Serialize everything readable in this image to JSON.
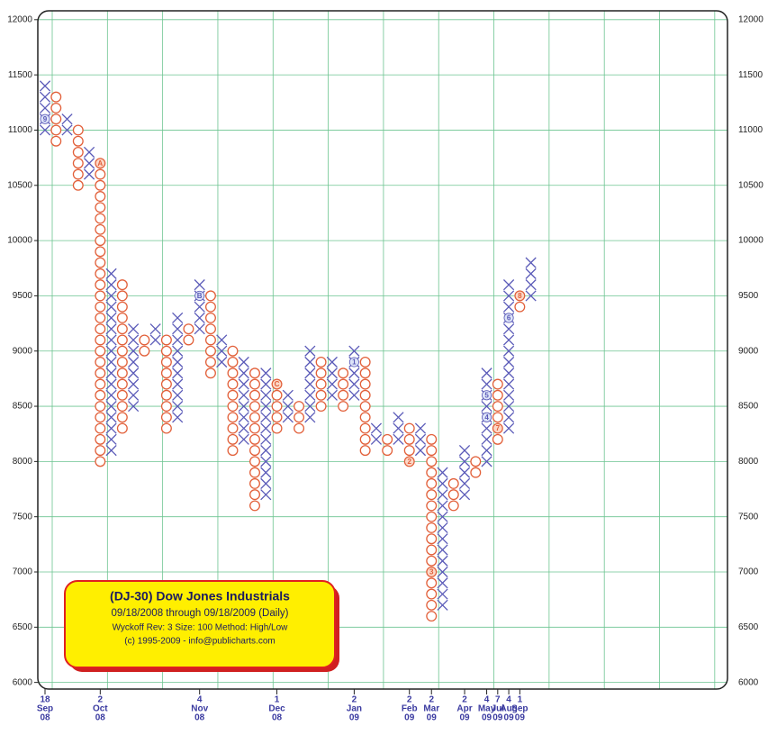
{
  "chart_data": {
    "type": "point-figure",
    "legend_box": {
      "title": "(DJ-30) Dow Jones Industrials",
      "subtitle": "09/18/2008 through 09/18/2009 (Daily)",
      "settings": "Wyckoff Rev: 3 Size: 100 Method: High/Low",
      "copyright": "(c) 1995-2009 - info@publicharts.com"
    },
    "box_size": 100,
    "ylim": [
      5940,
      12080
    ],
    "yticks": [
      6000,
      6500,
      7000,
      7500,
      8000,
      8500,
      9000,
      9500,
      10000,
      10500,
      11000,
      11500,
      12000
    ],
    "grid": true,
    "x_color": "#5a5ab8",
    "o_color": "#e2603a",
    "columns": [
      {
        "kind": "X",
        "from": 11000,
        "to": 11400,
        "date": {
          "day": "18",
          "month": "Sep",
          "year": "08"
        },
        "markers": [
          {
            "label": "9",
            "value": 11100
          }
        ]
      },
      {
        "kind": "O",
        "from": 11300,
        "to": 10900
      },
      {
        "kind": "X",
        "from": 11000,
        "to": 11100
      },
      {
        "kind": "O",
        "from": 11000,
        "to": 10500
      },
      {
        "kind": "X",
        "from": 10600,
        "to": 10800
      },
      {
        "kind": "O",
        "from": 10700,
        "to": 8000,
        "date": {
          "day": "2",
          "month": "Oct",
          "year": "08"
        },
        "markers": [
          {
            "label": "A",
            "value": 10700
          }
        ]
      },
      {
        "kind": "X",
        "from": 8100,
        "to": 9700
      },
      {
        "kind": "O",
        "from": 9600,
        "to": 8300
      },
      {
        "kind": "X",
        "from": 8500,
        "to": 9200
      },
      {
        "kind": "O",
        "from": 9100,
        "to": 9000
      },
      {
        "kind": "X",
        "from": 9100,
        "to": 9200
      },
      {
        "kind": "O",
        "from": 9100,
        "to": 8300
      },
      {
        "kind": "X",
        "from": 8400,
        "to": 9300
      },
      {
        "kind": "O",
        "from": 9200,
        "to": 9100
      },
      {
        "kind": "X",
        "from": 9200,
        "to": 9600,
        "date": {
          "day": "4",
          "month": "Nov",
          "year": "08"
        },
        "markers": [
          {
            "label": "B",
            "value": 9500
          }
        ]
      },
      {
        "kind": "O",
        "from": 9500,
        "to": 8800
      },
      {
        "kind": "X",
        "from": 8900,
        "to": 9100
      },
      {
        "kind": "O",
        "from": 9000,
        "to": 8100
      },
      {
        "kind": "X",
        "from": 8200,
        "to": 8900
      },
      {
        "kind": "O",
        "from": 8800,
        "to": 7600
      },
      {
        "kind": "X",
        "from": 7700,
        "to": 8800
      },
      {
        "kind": "O",
        "from": 8700,
        "to": 8300,
        "date": {
          "day": "1",
          "month": "Dec",
          "year": "08"
        },
        "markers": [
          {
            "label": "C",
            "value": 8700
          }
        ]
      },
      {
        "kind": "X",
        "from": 8400,
        "to": 8600
      },
      {
        "kind": "O",
        "from": 8500,
        "to": 8300
      },
      {
        "kind": "X",
        "from": 8400,
        "to": 9000
      },
      {
        "kind": "O",
        "from": 8900,
        "to": 8500
      },
      {
        "kind": "X",
        "from": 8600,
        "to": 8900
      },
      {
        "kind": "O",
        "from": 8800,
        "to": 8500
      },
      {
        "kind": "X",
        "from": 8600,
        "to": 9000,
        "date": {
          "day": "2",
          "month": "Jan",
          "year": "09",
          "color": "#e03030"
        },
        "markers": [
          {
            "label": "1",
            "value": 8900
          }
        ]
      },
      {
        "kind": "O",
        "from": 8900,
        "to": 8100
      },
      {
        "kind": "X",
        "from": 8200,
        "to": 8300
      },
      {
        "kind": "O",
        "from": 8200,
        "to": 8100
      },
      {
        "kind": "X",
        "from": 8200,
        "to": 8400
      },
      {
        "kind": "O",
        "from": 8300,
        "to": 8000,
        "date": {
          "day": "2",
          "month": "Feb",
          "year": "09"
        },
        "markers": [
          {
            "label": "2",
            "value": 8000
          }
        ]
      },
      {
        "kind": "X",
        "from": 8100,
        "to": 8300
      },
      {
        "kind": "O",
        "from": 8200,
        "to": 6600,
        "date": {
          "day": "2",
          "month": "Mar",
          "year": "09"
        },
        "markers": [
          {
            "label": "3",
            "value": 7000
          }
        ]
      },
      {
        "kind": "X",
        "from": 6700,
        "to": 7900
      },
      {
        "kind": "O",
        "from": 7800,
        "to": 7600
      },
      {
        "kind": "X",
        "from": 7700,
        "to": 8100,
        "date": {
          "day": "2",
          "month": "Apr",
          "year": "09"
        }
      },
      {
        "kind": "O",
        "from": 8000,
        "to": 7900
      },
      {
        "kind": "X",
        "from": 8000,
        "to": 8800,
        "date": {
          "day": "4",
          "month": "May",
          "year": "09"
        },
        "markers": [
          {
            "label": "4",
            "value": 8400
          },
          {
            "label": "5",
            "value": 8600
          }
        ]
      },
      {
        "kind": "O",
        "from": 8700,
        "to": 8200,
        "date": {
          "day": "7",
          "month": "Jul",
          "year": "09"
        },
        "markers": [
          {
            "label": "7",
            "value": 8300
          }
        ]
      },
      {
        "kind": "X",
        "from": 8300,
        "to": 9600,
        "date": {
          "day": "4",
          "month": "Aug",
          "year": "09"
        },
        "markers": [
          {
            "label": "6",
            "value": 9300
          }
        ]
      },
      {
        "kind": "O",
        "from": 9500,
        "to": 9400,
        "date": {
          "day": "1",
          "month": "Sep",
          "year": "09"
        },
        "markers": [
          {
            "label": "8",
            "value": 9500
          }
        ]
      },
      {
        "kind": "X",
        "from": 9500,
        "to": 9800
      }
    ]
  }
}
